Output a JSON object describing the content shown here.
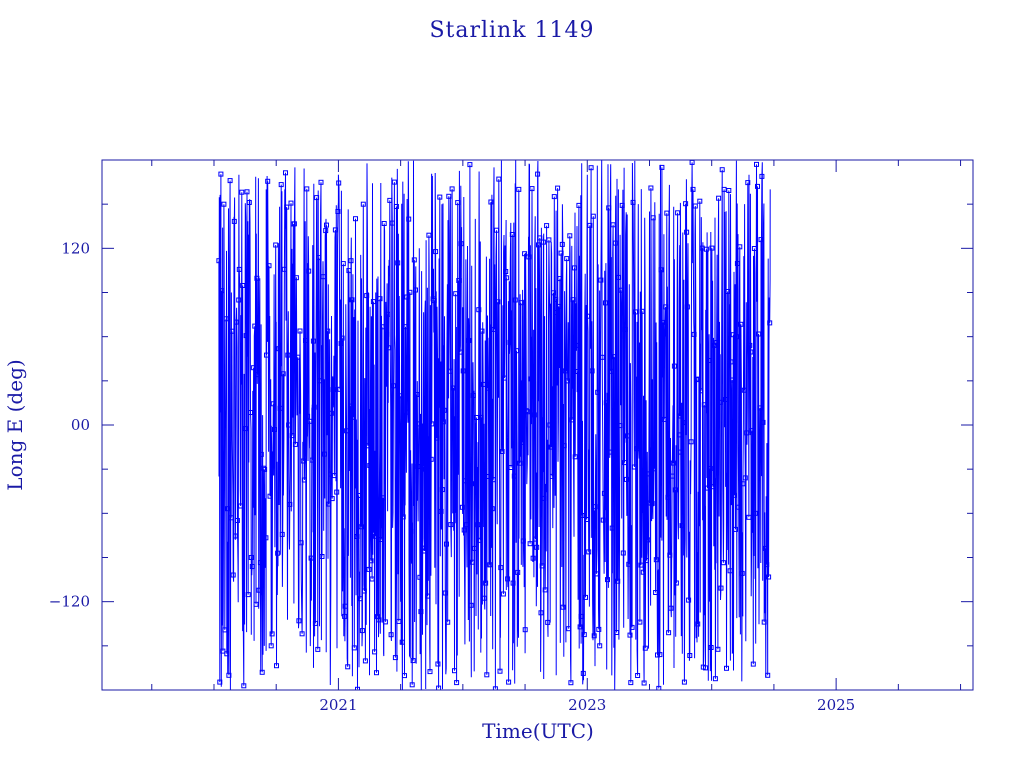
{
  "chart_data": {
    "type": "line",
    "title": "Starlink 1149",
    "xlabel": "Time(UTC)",
    "ylabel": "Long E (deg)",
    "xlim": [
      2019.1,
      2026.1
    ],
    "ylim": [
      -180,
      180
    ],
    "x_ticks": [
      {
        "value": 2021,
        "label": "2021"
      },
      {
        "value": 2023,
        "label": "2023"
      },
      {
        "value": 2025,
        "label": "2025"
      }
    ],
    "y_ticks": [
      {
        "value": 120,
        "label": "120"
      },
      {
        "value": 0,
        "label": "00"
      },
      {
        "value": -120,
        "label": "−120"
      }
    ],
    "series": [
      {
        "line_color": "#0000ff",
        "marker": "open-square",
        "x_start": 2020.04,
        "x_end": 2024.47,
        "y_range": [
          -180,
          180
        ],
        "points": [
          [
            2020.04,
            -35
          ],
          [
            2020.06,
            -100
          ],
          [
            2020.08,
            150
          ],
          [
            2020.1,
            20
          ],
          [
            2020.12,
            -170
          ],
          [
            2020.14,
            90
          ],
          [
            2020.17,
            -60
          ],
          [
            2020.2,
            170
          ],
          [
            2020.23,
            -140
          ],
          [
            2020.26,
            40
          ],
          [
            2020.3,
            -90
          ],
          [
            2020.34,
            130
          ],
          [
            2020.38,
            -20
          ],
          [
            2020.42,
            160
          ],
          [
            2020.46,
            -150
          ],
          [
            2020.5,
            70
          ],
          [
            2020.55,
            -110
          ],
          [
            2020.6,
            0
          ],
          [
            2020.65,
            175
          ],
          [
            2020.7,
            -80
          ],
          [
            2020.75,
            110
          ],
          [
            2020.8,
            -165
          ],
          [
            2020.85,
            30
          ],
          [
            2020.9,
            140
          ],
          [
            2020.95,
            -50
          ],
          [
            2021.0,
            170
          ],
          [
            2021.05,
            -130
          ],
          [
            2021.1,
            60
          ],
          [
            2021.15,
            -10
          ],
          [
            2021.2,
            150
          ],
          [
            2021.25,
            -170
          ],
          [
            2021.3,
            90
          ],
          [
            2021.35,
            -70
          ],
          [
            2021.4,
            15
          ],
          [
            2021.45,
            165
          ],
          [
            2021.5,
            -120
          ],
          [
            2021.55,
            50
          ],
          [
            2021.6,
            -160
          ],
          [
            2021.65,
            120
          ],
          [
            2021.7,
            -30
          ],
          [
            2021.75,
            170
          ],
          [
            2021.8,
            -100
          ],
          [
            2021.85,
            10
          ],
          [
            2021.9,
            155
          ],
          [
            2021.95,
            -175
          ],
          [
            2022.0,
            80
          ],
          [
            2022.05,
            -60
          ],
          [
            2022.1,
            140
          ],
          [
            2022.15,
            -145
          ],
          [
            2022.2,
            25
          ],
          [
            2022.25,
            175
          ],
          [
            2022.3,
            -90
          ],
          [
            2022.35,
            100
          ],
          [
            2022.4,
            -20
          ],
          [
            2022.45,
            160
          ],
          [
            2022.5,
            -155
          ],
          [
            2022.55,
            60
          ],
          [
            2022.6,
            -110
          ],
          [
            2022.65,
            130
          ],
          [
            2022.7,
            0
          ],
          [
            2022.75,
            -170
          ],
          [
            2022.8,
            150
          ],
          [
            2022.85,
            -40
          ],
          [
            2022.9,
            90
          ],
          [
            2022.95,
            -130
          ],
          [
            2023.0,
            170
          ],
          [
            2023.05,
            20
          ],
          [
            2023.1,
            -150
          ],
          [
            2023.15,
            110
          ],
          [
            2023.2,
            -70
          ],
          [
            2023.25,
            160
          ],
          [
            2023.3,
            -10
          ],
          [
            2023.35,
            -175
          ],
          [
            2023.4,
            70
          ],
          [
            2023.45,
            -100
          ],
          [
            2023.5,
            145
          ],
          [
            2023.55,
            -50
          ],
          [
            2023.6,
            175
          ],
          [
            2023.65,
            -140
          ],
          [
            2023.7,
            40
          ],
          [
            2023.75,
            120
          ],
          [
            2023.8,
            -90
          ],
          [
            2023.85,
            160
          ],
          [
            2023.9,
            -20
          ],
          [
            2023.95,
            -165
          ],
          [
            2024.0,
            100
          ],
          [
            2024.05,
            -105
          ],
          [
            2024.1,
            160
          ],
          [
            2024.15,
            -160
          ],
          [
            2024.2,
            60
          ],
          [
            2024.25,
            -130
          ],
          [
            2024.3,
            170
          ],
          [
            2024.35,
            -60
          ],
          [
            2024.4,
            130
          ],
          [
            2024.45,
            -170
          ],
          [
            2024.47,
            160
          ]
        ]
      }
    ]
  }
}
